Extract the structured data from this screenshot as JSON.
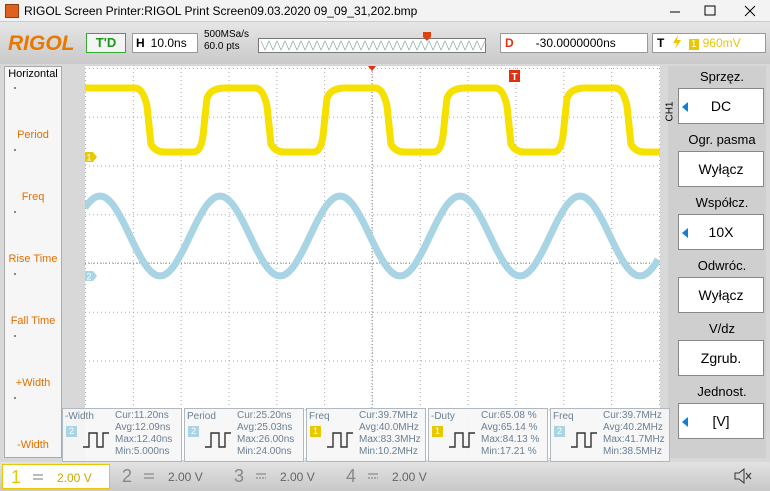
{
  "window": {
    "title": "RIGOL Screen Printer:RIGOL Print Screen09.03.2020 09_09_31,202.bmp"
  },
  "toolbar": {
    "logo": "RIGOL",
    "run_state": "T'D",
    "timebase_label": "H",
    "timebase": "10.0ns",
    "sample_rate": "500MSa/s",
    "points": "60.0 pts",
    "delay_label": "D",
    "delay": "-30.0000000ns",
    "trigger_label": "T",
    "trigger_source": "1",
    "trigger_level": "960mV"
  },
  "left_menu": {
    "title": "Horizontal",
    "items": [
      "Period",
      "Freq",
      "Rise Time",
      "Fall Time",
      "+Width",
      "-Width"
    ]
  },
  "screen": {
    "trigger_marker": "T",
    "channel_markers": [
      "1",
      "2"
    ]
  },
  "right_menu": {
    "channel": "CH1",
    "items": [
      {
        "label": "Sprzęz.",
        "value": "DC"
      },
      {
        "label": "Ogr. pasma",
        "value": "Wyłącz"
      },
      {
        "label": "Współcz.",
        "value": "10X"
      },
      {
        "label": "Odwróc.",
        "value": "Wyłącz"
      },
      {
        "label": "V/dz",
        "value": "Zgrub."
      },
      {
        "label": "Jednost.",
        "value": "[V]"
      }
    ]
  },
  "measurements": [
    {
      "name": "-Width",
      "channel": "2",
      "cur": "Cur:11.20ns",
      "avg": "Avg:12.09ns",
      "max": "Max:12.40ns",
      "min": "Min:5.000ns"
    },
    {
      "name": "Period",
      "channel": "2",
      "cur": "Cur:25.20ns",
      "avg": "Avg:25.03ns",
      "max": "Max:26.00ns",
      "min": "Min:24.00ns"
    },
    {
      "name": "Freq",
      "channel": "1",
      "cur": "Cur:39.7MHz",
      "avg": "Avg:40.0MHz",
      "max": "Max:83.3MHz",
      "min": "Min:10.2MHz"
    },
    {
      "name": "-Duty",
      "channel": "1",
      "cur": "Cur:65.08 %",
      "avg": "Avg:65.14 %",
      "max": "Max:84.13 %",
      "min": "Min:17.21 %"
    },
    {
      "name": "Freq",
      "channel": "2",
      "cur": "Cur:39.7MHz",
      "avg": "Avg:40.2MHz",
      "max": "Max:41.7MHz",
      "min": "Min:38.5MHz"
    }
  ],
  "channels": [
    {
      "number": "1",
      "scale": "2.00 V"
    },
    {
      "number": "2",
      "scale": "2.00 V"
    },
    {
      "number": "3",
      "scale": "2.00 V"
    },
    {
      "number": "4",
      "scale": "2.00 V"
    }
  ]
}
